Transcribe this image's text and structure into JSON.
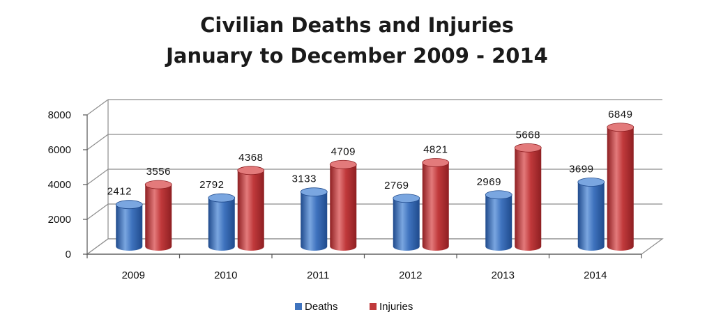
{
  "chart_data": {
    "type": "bar",
    "title": [
      "Civilian Deaths and Injuries",
      "January to December 2009 - 2014"
    ],
    "categories": [
      "2009",
      "2010",
      "2011",
      "2012",
      "2013",
      "2014"
    ],
    "series": [
      {
        "name": "Deaths",
        "values": [
          2412,
          2792,
          3133,
          2769,
          2969,
          3699
        ],
        "color": "#3f73be",
        "dark": "#1f4a8c",
        "light": "#7aa6e0"
      },
      {
        "name": "Injuries",
        "values": [
          3556,
          4368,
          4709,
          4821,
          5668,
          6849
        ],
        "color": "#c0393b",
        "dark": "#8e1f22",
        "light": "#e37a7b"
      }
    ],
    "yticks": [
      "0",
      "2000",
      "4000",
      "6000",
      "8000"
    ],
    "ylim": [
      0,
      8000
    ],
    "grid": true,
    "legend": "bottom",
    "bar_style": "3d-cylinder"
  }
}
